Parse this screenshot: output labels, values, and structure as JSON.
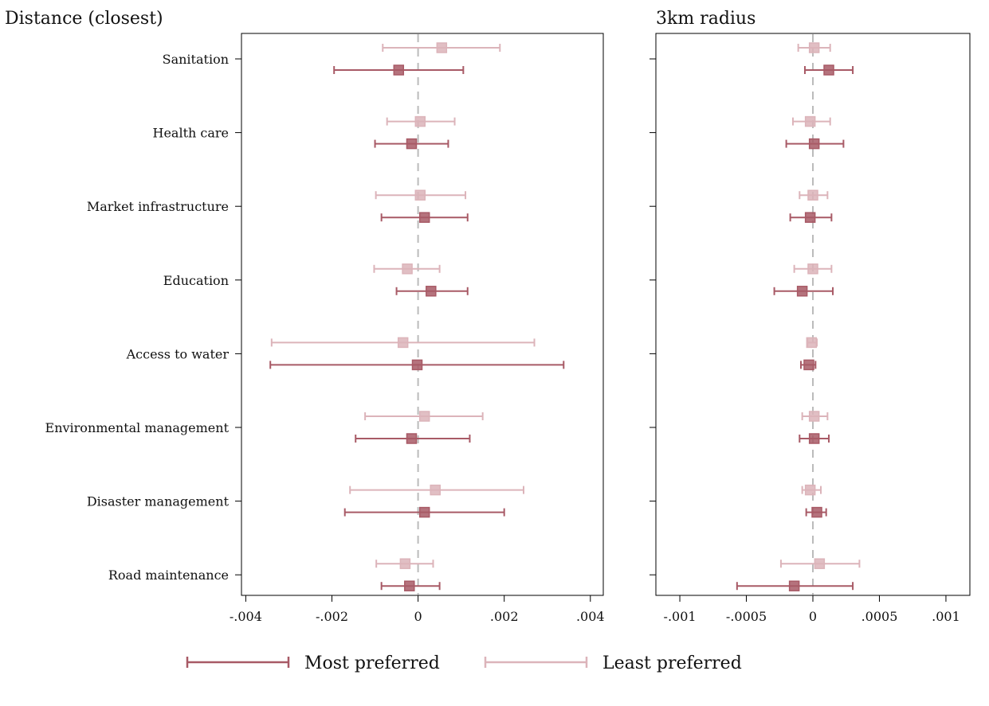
{
  "colors": {
    "most_preferred": "#a85a66",
    "least_preferred": "#dcb4ba",
    "zero_line": "#bbbbbb",
    "axis": "#000000"
  },
  "legend": {
    "placement": "bottom-center",
    "most_label": "Most preferred",
    "least_label": "Least preferred"
  },
  "chart_data": [
    {
      "type": "scatter",
      "subtype": "coefficient-plot-with-confidence-intervals",
      "title": "Distance (closest)",
      "categories": [
        "Sanitation",
        "Health care",
        "Market infrastructure",
        "Education",
        "Access to water",
        "Environmental management",
        "Disaster management",
        "Road maintenance"
      ],
      "xlim": [
        -0.0041,
        0.0043
      ],
      "xticks": [
        -0.004,
        -0.002,
        0,
        0.002,
        0.004
      ],
      "xtick_labels": [
        "-.004",
        "-.002",
        "0",
        ".002",
        ".004"
      ],
      "reference_line": 0,
      "series": [
        {
          "name": "Most preferred",
          "values": [
            -0.00045,
            -0.00015,
            0.00015,
            0.0003,
            -2e-05,
            -0.00015,
            0.00015,
            -0.0002
          ],
          "ci_low": [
            -0.00195,
            -0.001,
            -0.00085,
            -0.0005,
            -0.00343,
            -0.00145,
            -0.0017,
            -0.00085
          ],
          "ci_high": [
            0.00105,
            0.0007,
            0.00115,
            0.00115,
            0.00338,
            0.0012,
            0.002,
            0.0005
          ]
        },
        {
          "name": "Least preferred",
          "values": [
            0.00055,
            5e-05,
            5e-05,
            -0.00025,
            -0.00035,
            0.00015,
            0.0004,
            -0.0003
          ],
          "ci_low": [
            -0.00082,
            -0.00072,
            -0.00098,
            -0.00102,
            -0.0034,
            -0.00123,
            -0.00158,
            -0.00097
          ],
          "ci_high": [
            0.0019,
            0.00085,
            0.0011,
            0.0005,
            0.0027,
            0.0015,
            0.00245,
            0.00035
          ]
        }
      ]
    },
    {
      "type": "scatter",
      "subtype": "coefficient-plot-with-confidence-intervals",
      "title": "3km radius",
      "categories": [
        "Sanitation",
        "Health care",
        "Market infrastructure",
        "Education",
        "Access to water",
        "Environmental management",
        "Disaster management",
        "Road maintenance"
      ],
      "xlim": [
        -0.00118,
        0.00118
      ],
      "xticks": [
        -0.001,
        -0.0005,
        0,
        0.0005,
        0.001
      ],
      "xtick_labels": [
        "-.001",
        "-.0005",
        "0",
        ".0005",
        ".001"
      ],
      "reference_line": 0,
      "series": [
        {
          "name": "Most preferred",
          "values": [
            0.00012,
            1e-05,
            -2e-05,
            -8e-05,
            -3e-05,
            1e-05,
            3e-05,
            -0.00014
          ],
          "ci_low": [
            -6e-05,
            -0.0002,
            -0.00017,
            -0.00029,
            -9e-05,
            -0.0001,
            -5e-05,
            -0.00057
          ],
          "ci_high": [
            0.0003,
            0.00023,
            0.00014,
            0.00015,
            2e-05,
            0.00012,
            0.0001,
            0.0003
          ]
        },
        {
          "name": "Least preferred",
          "values": [
            1e-05,
            -2e-05,
            0.0,
            0.0,
            -1e-05,
            1e-05,
            -2e-05,
            5e-05
          ],
          "ci_low": [
            -0.00011,
            -0.00015,
            -0.0001,
            -0.00014,
            -4e-05,
            -8e-05,
            -8e-05,
            -0.00024
          ],
          "ci_high": [
            0.00013,
            0.00013,
            0.00011,
            0.00014,
            3e-05,
            0.00011,
            6e-05,
            0.00035
          ]
        }
      ]
    }
  ]
}
